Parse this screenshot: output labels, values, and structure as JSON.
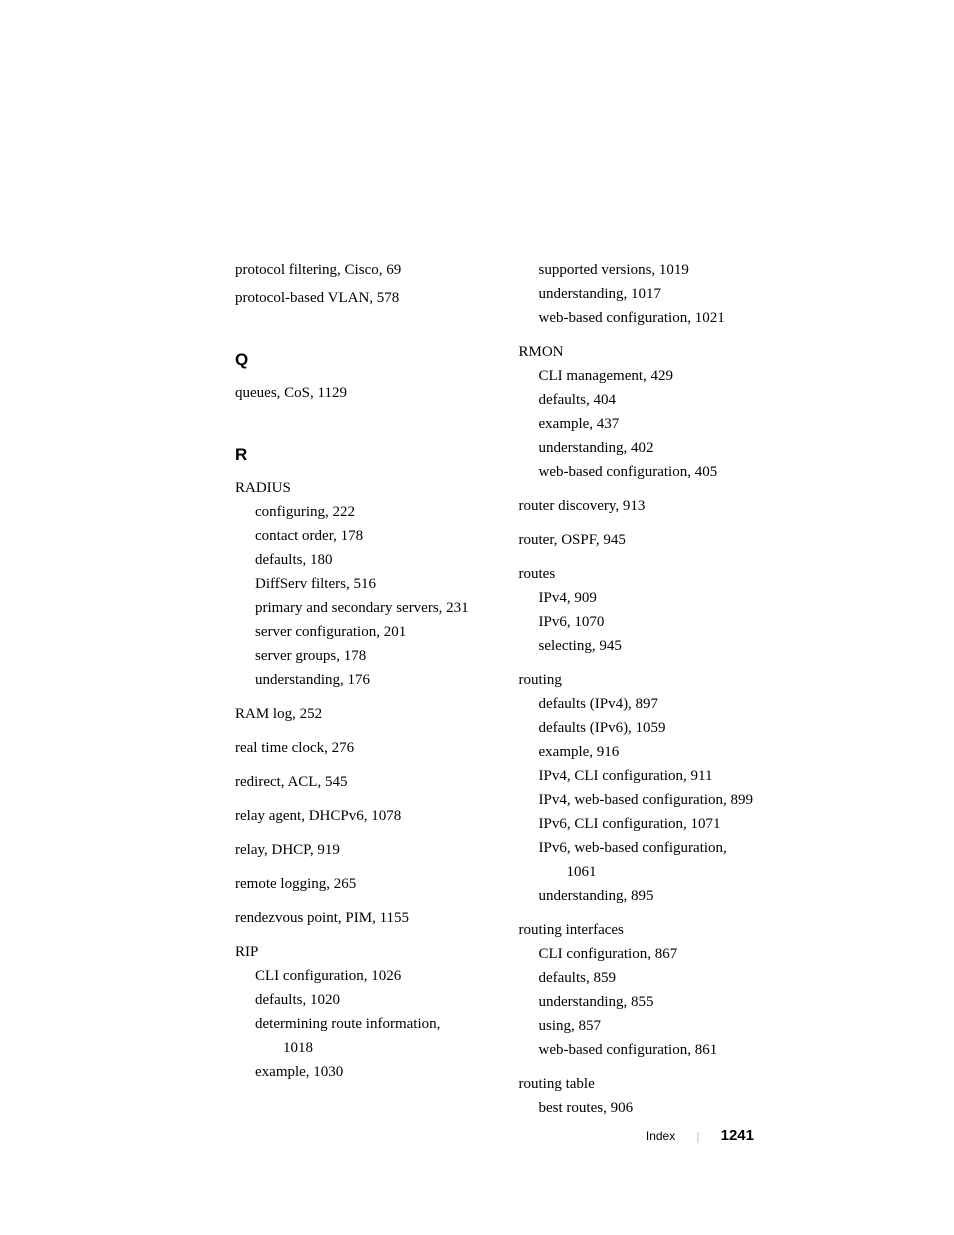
{
  "left_column": {
    "top_entries": [
      "protocol filtering, Cisco, 69",
      "protocol-based VLAN, 578"
    ],
    "sections": [
      {
        "letter": "Q",
        "blocks": [
          {
            "lines": [
              "queues, CoS, 1129"
            ]
          }
        ]
      },
      {
        "letter": "R",
        "blocks": [
          {
            "term": "RADIUS",
            "subs": [
              "configuring, 222",
              "contact order, 178",
              "defaults, 180",
              "DiffServ filters, 516"
            ],
            "subs_wrap": [
              "primary and secondary servers, 231"
            ],
            "subs2": [
              "server configuration, 201",
              "server groups, 178",
              "understanding, 176"
            ]
          },
          {
            "lines": [
              "RAM log, 252"
            ]
          },
          {
            "lines": [
              "real time clock, 276"
            ]
          },
          {
            "lines": [
              "redirect, ACL, 545"
            ]
          },
          {
            "lines": [
              "relay agent, DHCPv6, 1078"
            ]
          },
          {
            "lines": [
              "relay, DHCP, 919"
            ]
          },
          {
            "lines": [
              "remote logging, 265"
            ]
          },
          {
            "lines": [
              "rendezvous point, PIM, 1155"
            ]
          },
          {
            "term": "RIP",
            "subs": [
              "CLI configuration, 1026",
              "defaults, 1020"
            ],
            "subs_wrap": [
              "determining route information, 1018"
            ],
            "subs2": [
              "example, 1030"
            ]
          }
        ]
      }
    ]
  },
  "right_column": {
    "blocks": [
      {
        "subs_only": [
          "supported versions, 1019",
          "understanding, 1017",
          "web-based configuration, 1021"
        ]
      },
      {
        "term": "RMON",
        "subs": [
          "CLI management, 429",
          "defaults, 404",
          "example, 437",
          "understanding, 402",
          "web-based configuration, 405"
        ]
      },
      {
        "lines": [
          "router discovery, 913"
        ]
      },
      {
        "lines": [
          "router, OSPF, 945"
        ]
      },
      {
        "term": "routes",
        "subs": [
          "IPv4, 909",
          "IPv6, 1070",
          "selecting, 945"
        ]
      },
      {
        "term": "routing",
        "subs": [
          "defaults (IPv4), 897",
          "defaults (IPv6), 1059",
          "example, 916",
          "IPv4, CLI configuration, 911"
        ],
        "subs_wrap": [
          "IPv4, web-based configuration, 899"
        ],
        "subs2": [
          "IPv6, CLI configuration, 1071"
        ],
        "subs_wrap2": [
          "IPv6, web-based configuration, 1061"
        ],
        "subs3": [
          "understanding, 895"
        ]
      },
      {
        "term": "routing interfaces",
        "subs": [
          "CLI configuration, 867",
          "defaults, 859",
          "understanding, 855",
          "using, 857",
          "web-based configuration, 861"
        ]
      },
      {
        "term": "routing table",
        "subs": [
          "best routes, 906"
        ]
      }
    ]
  },
  "footer": {
    "label": "Index",
    "page": "1241"
  }
}
